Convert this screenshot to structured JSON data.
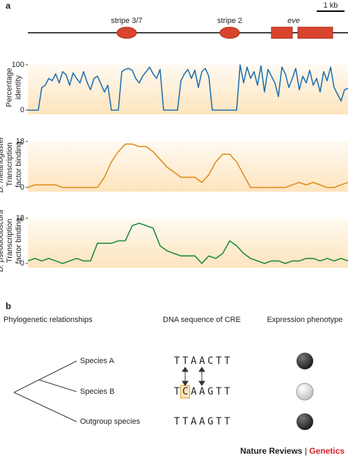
{
  "panel_a": {
    "label": "a",
    "scale_bar": "1 kb",
    "elements": [
      "stripe 3/7",
      "stripe 2",
      "eve"
    ]
  },
  "chart_data": [
    {
      "type": "line",
      "ylabel": [
        "Percentage",
        "identity"
      ],
      "ylim": [
        0,
        100
      ],
      "yticks": [
        0,
        100
      ],
      "color": "#1f6fb0",
      "values": [
        0,
        0,
        0,
        0,
        50,
        55,
        70,
        65,
        80,
        60,
        85,
        78,
        55,
        82,
        70,
        60,
        85,
        62,
        45,
        70,
        75,
        58,
        40,
        55,
        0,
        0,
        0,
        85,
        90,
        92,
        88,
        70,
        60,
        75,
        85,
        95,
        80,
        70,
        90,
        0,
        0,
        0,
        0,
        0,
        65,
        80,
        90,
        70,
        88,
        50,
        85,
        92,
        75,
        0,
        0,
        0,
        0,
        0,
        0,
        0,
        0,
        100,
        60,
        95,
        70,
        85,
        55,
        98,
        40,
        90,
        75,
        60,
        30,
        95,
        80,
        50,
        70,
        92,
        45,
        75,
        60,
        88,
        55,
        70,
        40,
        85,
        65,
        95,
        50,
        35,
        20,
        45,
        48
      ]
    },
    {
      "type": "line",
      "ylabel": [
        "D. melanogaster",
        "Transcription",
        "factor binding"
      ],
      "ylim": [
        0,
        18
      ],
      "yticks": [
        0,
        18
      ],
      "color": "#e08a1e",
      "values": [
        0,
        1,
        1,
        1,
        1,
        0,
        0,
        0,
        0,
        0,
        0,
        4,
        10,
        14,
        17,
        17,
        16,
        16,
        14,
        11,
        8,
        6,
        4,
        4,
        4,
        2,
        5,
        10,
        13,
        13,
        10,
        5,
        0,
        0,
        0,
        0,
        0,
        0,
        1,
        2,
        1,
        2,
        1,
        0,
        0,
        1,
        2
      ]
    },
    {
      "type": "line",
      "ylabel": [
        "D. pseudoobscura",
        "Transcription",
        "factor binding"
      ],
      "ylim": [
        0,
        18
      ],
      "yticks": [
        0,
        18
      ],
      "color": "#1e8a3a",
      "values": [
        1,
        2,
        1,
        2,
        1,
        0,
        1,
        2,
        1,
        1,
        8,
        8,
        8,
        9,
        9,
        15,
        16,
        15,
        14,
        7,
        5,
        4,
        3,
        3,
        3,
        0,
        3,
        2,
        4,
        9,
        7,
        4,
        2,
        1,
        0,
        1,
        1,
        0,
        1,
        1,
        2,
        2,
        1,
        2,
        1,
        2,
        1
      ]
    }
  ],
  "panel_b": {
    "label": "b",
    "headers": [
      "Phylogenetic relationships",
      "DNA sequence of CRE",
      "Expression phenotype"
    ],
    "species": [
      "Species A",
      "Species B",
      "Outgroup species"
    ],
    "sequence_a": "TTAACTT",
    "sequence_b": {
      "before": "T",
      "highlight": "C",
      "after": "AAGTT"
    },
    "sequence_outgroup": "TTAAGTT"
  },
  "footer": {
    "journal": "Nature Reviews",
    "separator": "|",
    "section": "Genetics"
  }
}
